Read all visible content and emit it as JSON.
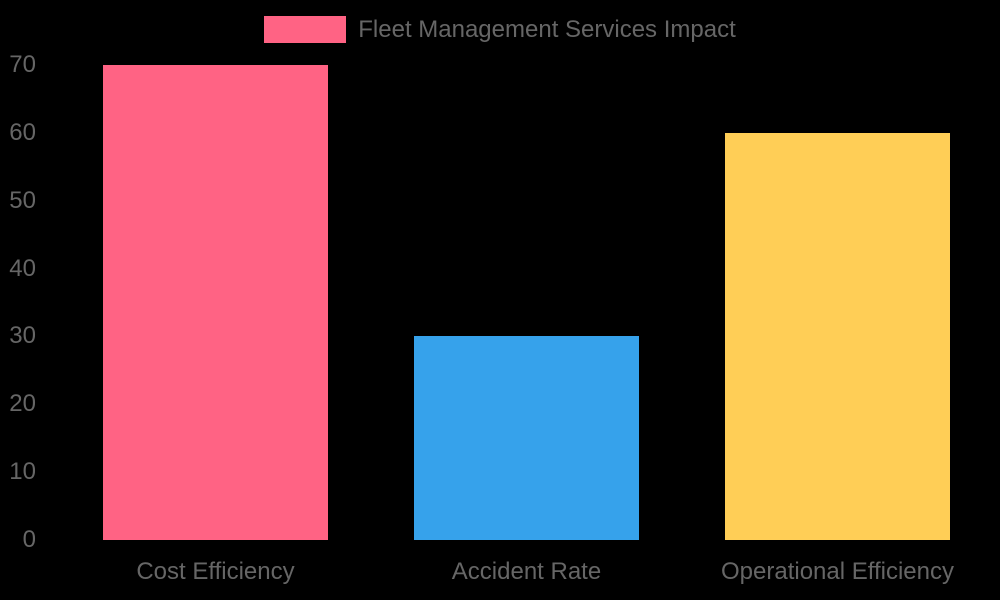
{
  "chart_data": {
    "type": "bar",
    "title": "",
    "categories": [
      "Cost Efficiency",
      "Accident Rate",
      "Operational Efficiency"
    ],
    "values": [
      70,
      30,
      60
    ],
    "bar_colors": [
      "#FF6384",
      "#36A2EB",
      "#FFCE56"
    ],
    "legend": {
      "label": "Fleet Management Services Impact",
      "swatch_color": "#FF6384",
      "position": "top"
    },
    "xlabel": "",
    "ylabel": "",
    "ylim": [
      0,
      70
    ],
    "yticks": [
      0,
      10,
      20,
      30,
      40,
      50,
      60,
      70
    ],
    "grid": false,
    "background_color": "#000000",
    "text_color": "#666666"
  }
}
